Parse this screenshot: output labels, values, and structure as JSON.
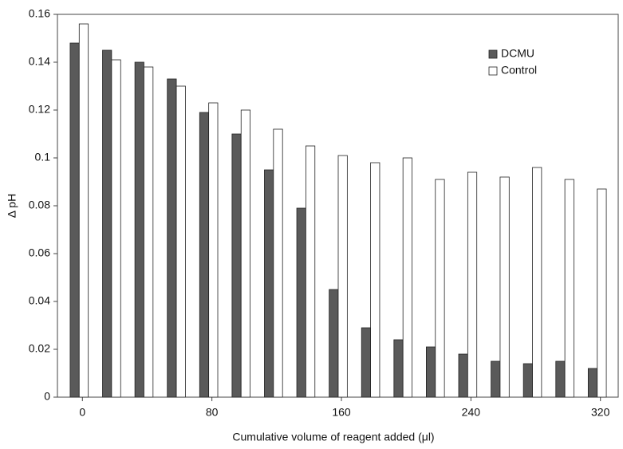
{
  "chart_data": {
    "type": "bar",
    "x_label": "Cumulative volume of reagent added (μl)",
    "y_label": "Δ pH",
    "categories": [
      "0",
      null,
      null,
      null,
      "80",
      null,
      null,
      null,
      "160",
      null,
      null,
      null,
      "240",
      null,
      null,
      null,
      "320"
    ],
    "series": [
      {
        "name": "DCMU",
        "color": "#5a5a5a",
        "values": [
          0.148,
          0.145,
          0.14,
          0.133,
          0.119,
          0.11,
          0.095,
          0.079,
          0.045,
          0.029,
          0.024,
          0.021,
          0.018,
          0.015,
          0.014,
          0.015,
          0.012
        ]
      },
      {
        "name": "Control",
        "color": "#ffffff",
        "values": [
          0.156,
          0.141,
          0.138,
          0.13,
          0.123,
          0.12,
          0.112,
          0.105,
          0.101,
          0.098,
          0.1,
          0.091,
          0.094,
          0.092,
          0.096,
          0.091,
          0.087
        ]
      }
    ],
    "ylim": [
      0,
      0.16
    ],
    "yticks": [
      0,
      0.02,
      0.04,
      0.06,
      0.08,
      0.1,
      0.12,
      0.14,
      0.16
    ],
    "legend": "top-right"
  }
}
